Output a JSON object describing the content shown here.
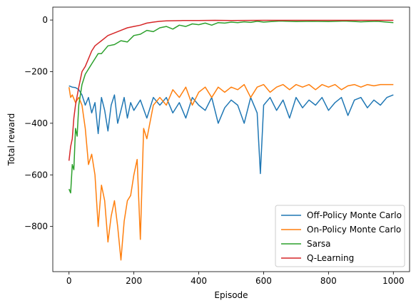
{
  "chart_data": {
    "type": "line",
    "title": "",
    "xlabel": "Episode",
    "ylabel": "Total reward",
    "xlim": [
      -50,
      1050
    ],
    "ylim": [
      -975,
      50
    ],
    "xticks": [
      0,
      200,
      400,
      600,
      800,
      1000
    ],
    "xtick_labels": [
      "0",
      "200",
      "400",
      "600",
      "800",
      "1000"
    ],
    "yticks": [
      0,
      -200,
      -400,
      -600,
      -800
    ],
    "ytick_labels": [
      "0",
      "−200",
      "−400",
      "−600",
      "−800"
    ],
    "grid": false,
    "legend_position": "lower-right",
    "series": [
      {
        "name": "Off-Policy Monte Carlo",
        "color": "#1f77b4",
        "x": [
          0,
          10,
          20,
          30,
          40,
          50,
          60,
          70,
          80,
          90,
          100,
          110,
          120,
          130,
          140,
          150,
          160,
          170,
          180,
          190,
          200,
          220,
          240,
          260,
          280,
          300,
          320,
          340,
          360,
          380,
          400,
          420,
          440,
          460,
          480,
          500,
          520,
          540,
          560,
          580,
          590,
          600,
          620,
          640,
          660,
          680,
          700,
          720,
          740,
          760,
          780,
          800,
          820,
          840,
          860,
          880,
          900,
          920,
          940,
          960,
          980,
          1000
        ],
        "y": [
          -255,
          -260,
          -262,
          -270,
          -290,
          -330,
          -300,
          -360,
          -320,
          -440,
          -300,
          -350,
          -430,
          -330,
          -290,
          -400,
          -350,
          -300,
          -380,
          -320,
          -350,
          -310,
          -380,
          -300,
          -330,
          -300,
          -360,
          -320,
          -380,
          -300,
          -330,
          -350,
          -300,
          -400,
          -340,
          -310,
          -330,
          -400,
          -300,
          -360,
          -595,
          -330,
          -300,
          -350,
          -310,
          -380,
          -300,
          -340,
          -310,
          -330,
          -300,
          -350,
          -320,
          -300,
          -370,
          -310,
          -300,
          -340,
          -310,
          -330,
          -300,
          -290
        ]
      },
      {
        "name": "On-Policy Monte Carlo",
        "color": "#ff7f0e",
        "x": [
          0,
          5,
          10,
          20,
          30,
          40,
          50,
          60,
          70,
          80,
          90,
          100,
          110,
          120,
          130,
          140,
          150,
          160,
          170,
          180,
          190,
          200,
          210,
          220,
          230,
          240,
          260,
          280,
          300,
          320,
          340,
          360,
          380,
          400,
          420,
          440,
          460,
          480,
          500,
          520,
          540,
          560,
          580,
          600,
          620,
          640,
          660,
          680,
          700,
          720,
          740,
          760,
          780,
          800,
          820,
          840,
          860,
          880,
          900,
          920,
          940,
          960,
          980,
          1000
        ],
        "y": [
          -260,
          -300,
          -290,
          -320,
          -300,
          -330,
          -420,
          -560,
          -520,
          -600,
          -800,
          -640,
          -700,
          -860,
          -760,
          -700,
          -800,
          -930,
          -780,
          -700,
          -680,
          -600,
          -540,
          -850,
          -420,
          -460,
          -330,
          -300,
          -330,
          -270,
          -300,
          -260,
          -330,
          -280,
          -260,
          -300,
          -260,
          -280,
          -260,
          -270,
          -250,
          -300,
          -260,
          -250,
          -280,
          -260,
          -250,
          -270,
          -250,
          -260,
          -250,
          -270,
          -250,
          -260,
          -250,
          -270,
          -255,
          -250,
          -260,
          -250,
          -255,
          -250,
          -250,
          -250
        ]
      },
      {
        "name": "Sarsa",
        "color": "#2ca02c",
        "x": [
          0,
          5,
          10,
          15,
          20,
          25,
          30,
          40,
          50,
          60,
          70,
          80,
          90,
          100,
          120,
          140,
          160,
          180,
          200,
          220,
          240,
          260,
          280,
          300,
          320,
          340,
          360,
          380,
          400,
          420,
          440,
          460,
          480,
          500,
          520,
          540,
          560,
          580,
          600,
          650,
          700,
          750,
          800,
          850,
          900,
          950,
          1000
        ],
        "y": [
          -655,
          -670,
          -560,
          -580,
          -420,
          -450,
          -330,
          -250,
          -210,
          -190,
          -170,
          -150,
          -130,
          -130,
          -100,
          -95,
          -80,
          -85,
          -60,
          -55,
          -40,
          -45,
          -30,
          -25,
          -35,
          -20,
          -25,
          -15,
          -18,
          -12,
          -20,
          -10,
          -12,
          -8,
          -10,
          -7,
          -9,
          -5,
          -8,
          -4,
          -6,
          -5,
          -6,
          -4,
          -7,
          -5,
          -10
        ]
      },
      {
        "name": "Q-Learning",
        "color": "#d62728",
        "x": [
          0,
          5,
          10,
          15,
          20,
          30,
          40,
          50,
          60,
          70,
          80,
          90,
          100,
          120,
          140,
          160,
          180,
          200,
          220,
          240,
          260,
          280,
          300,
          350,
          400,
          450,
          500,
          600,
          700,
          800,
          900,
          1000
        ],
        "y": [
          -545,
          -490,
          -460,
          -380,
          -330,
          -260,
          -200,
          -180,
          -150,
          -120,
          -100,
          -90,
          -80,
          -60,
          -50,
          -40,
          -30,
          -25,
          -20,
          -12,
          -8,
          -5,
          -3,
          -2,
          -2,
          -1,
          -2,
          -1,
          -1,
          -1,
          -1,
          -1
        ]
      }
    ]
  }
}
